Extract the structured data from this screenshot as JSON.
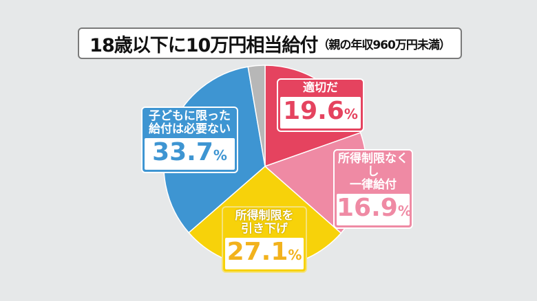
{
  "title": {
    "main": "18歳以下に10万円相当給付",
    "sub": "（親の年収960万円未満）"
  },
  "chart_data": {
    "type": "pie",
    "title": "18歳以下に10万円相当給付（親の年収960万円未満）",
    "start": "top",
    "direction": "clockwise",
    "slices": [
      {
        "label": "適切だ",
        "value": 19.6,
        "display": "19.6",
        "color": "#e5435f"
      },
      {
        "label": "所得制限なくし一律給付",
        "label_lines": [
          "所得制限なくし",
          "一律給付"
        ],
        "value": 16.9,
        "display": "16.9",
        "color": "#ef8aa4"
      },
      {
        "label": "所得制限を引き下げ",
        "label_lines": [
          "所得制限を",
          "引き下げ"
        ],
        "value": 27.1,
        "display": "27.1",
        "color": "#f7d20a"
      },
      {
        "label": "子どもに限った給付は必要ない",
        "label_lines": [
          "子どもに限った",
          "給付は必要ない"
        ],
        "value": 33.7,
        "display": "33.7",
        "color": "#3e95d2"
      },
      {
        "label": "",
        "value": 2.7,
        "color": "#b7b7b7",
        "note": "unlabeled remainder"
      }
    ],
    "unit": "%"
  }
}
